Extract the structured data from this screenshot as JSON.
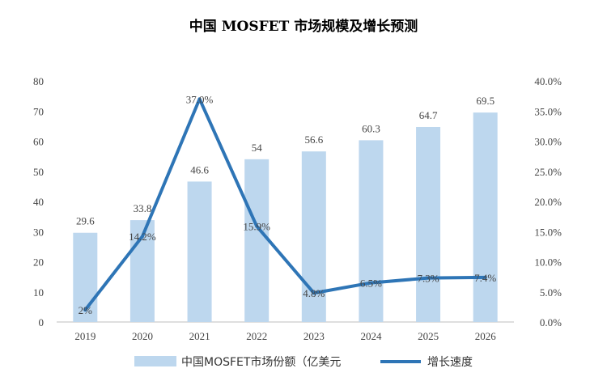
{
  "chart_data": {
    "type": "bar",
    "title": "中国 MOSFET 市场规模及增长预测",
    "categories": [
      "2019",
      "2020",
      "2021",
      "2022",
      "2023",
      "2024",
      "2025",
      "2026"
    ],
    "series": [
      {
        "name": "中国MOSFET市场份额（亿美元",
        "type": "bar",
        "axis": "left",
        "values": [
          29.6,
          33.8,
          46.6,
          54,
          56.6,
          60.3,
          64.7,
          69.5
        ],
        "labels": [
          "29.6",
          "33.8",
          "46.6",
          "54",
          "56.6",
          "60.3",
          "64.7",
          "69.5"
        ],
        "color": "#bdd7ee"
      },
      {
        "name": "增长速度",
        "type": "line",
        "axis": "right",
        "values": [
          2,
          14.2,
          37.0,
          15.9,
          4.8,
          6.5,
          7.3,
          7.4
        ],
        "labels": [
          "2%",
          "14.2%",
          "37.0%",
          "15.9%",
          "4.8%",
          "6.5%",
          "7.3%",
          "7.4%"
        ],
        "color": "#2e75b6"
      }
    ],
    "left_axis": {
      "ylim": [
        0,
        80
      ],
      "ticks": [
        "0",
        "10",
        "20",
        "30",
        "40",
        "50",
        "60",
        "70",
        "80"
      ]
    },
    "right_axis": {
      "ylim": [
        0,
        40
      ],
      "ticks": [
        "0.0%",
        "5.0%",
        "10.0%",
        "15.0%",
        "20.0%",
        "25.0%",
        "30.0%",
        "35.0%",
        "40.0%"
      ]
    },
    "grid": false,
    "legend_position": "bottom"
  }
}
